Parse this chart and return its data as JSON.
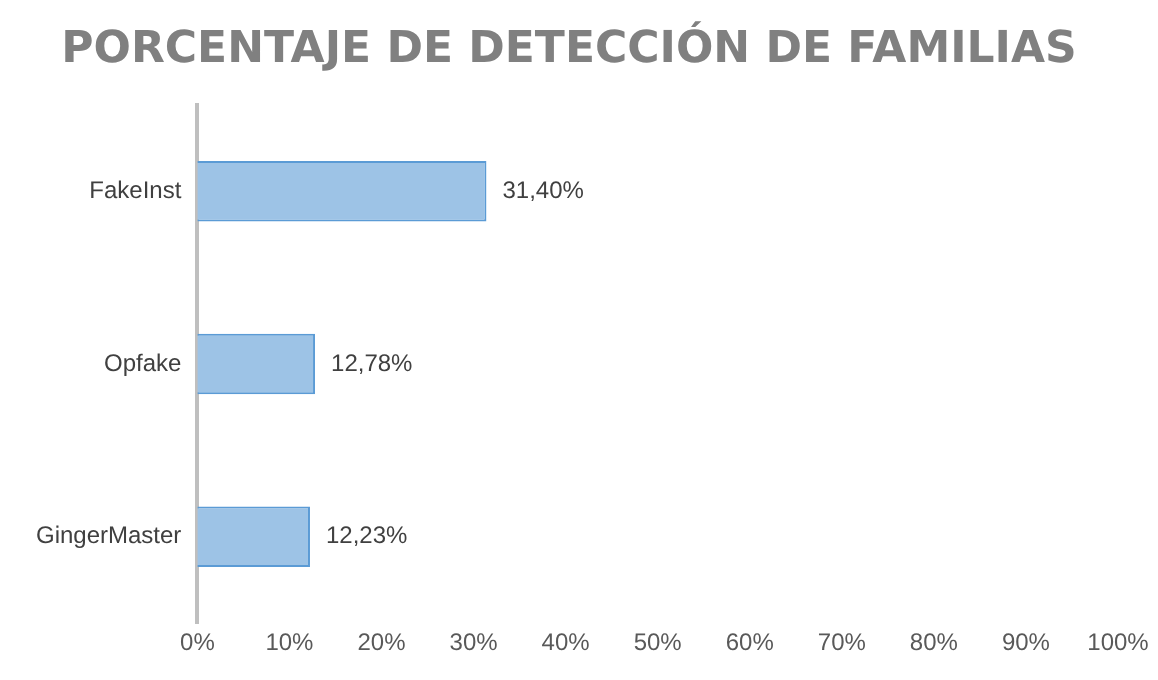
{
  "chart_data": {
    "type": "bar",
    "orientation": "horizontal",
    "title": "PORCENTAJE DE DETECCIÓN DE FAMILIAS",
    "categories": [
      "FakeInst",
      "Opfake",
      "GingerMaster"
    ],
    "values": [
      31.4,
      12.78,
      12.23
    ],
    "value_labels": [
      "31,40%",
      "12,78%",
      "12,23%"
    ],
    "color": "#9dc3e6",
    "xlim": [
      0,
      100
    ],
    "xticks": [
      {
        "value": 0,
        "label": "0%"
      },
      {
        "value": 10,
        "label": "10%"
      },
      {
        "value": 20,
        "label": "20%"
      },
      {
        "value": 30,
        "label": "30%"
      },
      {
        "value": 40,
        "label": "40%"
      },
      {
        "value": 50,
        "label": "50%"
      },
      {
        "value": 60,
        "label": "60%"
      },
      {
        "value": 70,
        "label": "70%"
      },
      {
        "value": 80,
        "label": "80%"
      },
      {
        "value": 90,
        "label": "90%"
      },
      {
        "value": 100,
        "label": "100%"
      }
    ],
    "grid": false,
    "legend": false
  }
}
